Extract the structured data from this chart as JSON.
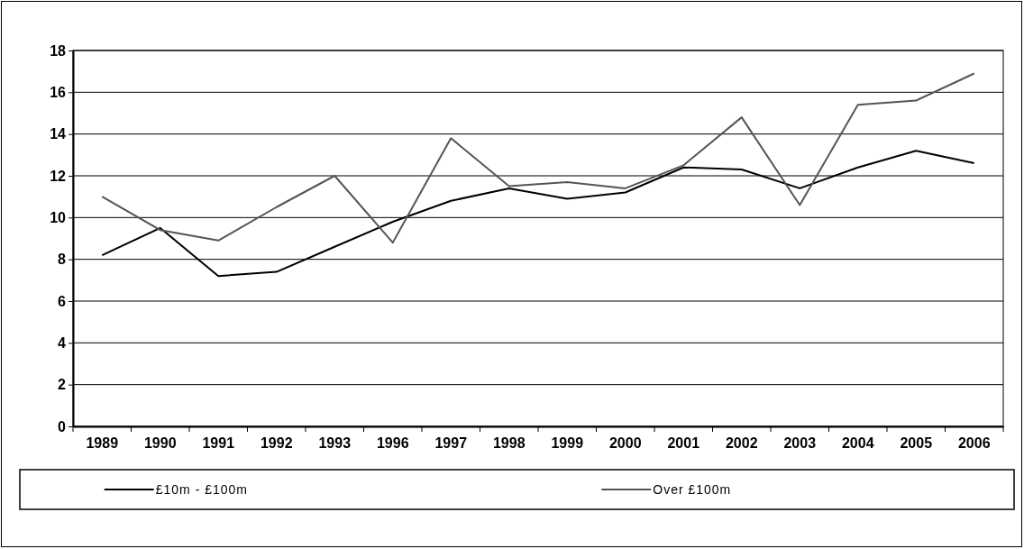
{
  "chart_data": {
    "type": "line",
    "categories": [
      "1989",
      "1990",
      "1991",
      "1992",
      "1993",
      "1996",
      "1997",
      "1998",
      "1999",
      "2000",
      "2001",
      "2002",
      "2003",
      "2004",
      "2005",
      "2006"
    ],
    "series": [
      {
        "name": "£10m - £100m",
        "color": "#000000",
        "values": [
          8.2,
          9.5,
          7.2,
          7.4,
          8.6,
          9.8,
          10.8,
          11.4,
          10.9,
          11.2,
          12.4,
          12.3,
          11.4,
          12.4,
          13.2,
          12.6
        ]
      },
      {
        "name": "Over £100m",
        "color": "#555555",
        "values": [
          11.0,
          9.4,
          8.9,
          10.5,
          12.0,
          8.8,
          13.8,
          11.5,
          11.7,
          11.4,
          12.5,
          14.8,
          10.6,
          15.4,
          15.6,
          16.9
        ]
      }
    ],
    "ylim": [
      0,
      18
    ],
    "yticks": [
      0,
      2,
      4,
      6,
      8,
      10,
      12,
      14,
      16,
      18
    ],
    "grid": "y",
    "legend": "bottom",
    "marker": "none",
    "line_style": "solid"
  }
}
